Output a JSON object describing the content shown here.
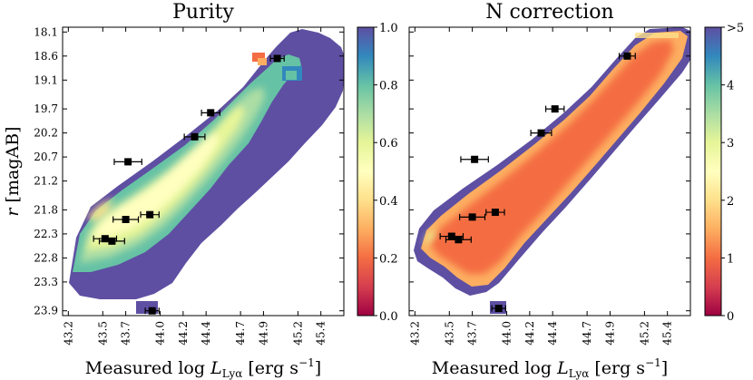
{
  "chart_data": [
    {
      "type": "heatmap",
      "title": "Purity",
      "xlabel": "Measured log L_Lyα [erg s^-1]",
      "xlabel_parts": {
        "main": "Measured log ",
        "L": "L",
        "sub": "Lyα",
        "unit": " [erg s",
        "exp": "−1",
        "close": "]"
      },
      "ylabel": "r [magAB]",
      "ylabel_parts": {
        "r": "r",
        "rest": " [magAB]"
      },
      "xlim": [
        43.15,
        45.6
      ],
      "ylim": [
        18.0,
        24.0
      ],
      "xticks": [
        "43.2",
        "43.5",
        "43.7",
        "44.0",
        "44.2",
        "44.4",
        "44.7",
        "44.9",
        "45.2",
        "45.4"
      ],
      "yticks": [
        "18.1",
        "18.6",
        "19.1",
        "19.7",
        "20.2",
        "20.7",
        "21.2",
        "21.8",
        "22.3",
        "22.8",
        "23.3",
        "23.9"
      ],
      "colorbar": {
        "min": 0.0,
        "max": 1.0,
        "ticks": [
          "0.0",
          "0.2",
          "0.4",
          "0.6",
          "0.8",
          "1.0"
        ]
      },
      "points": [
        {
          "x": 45.02,
          "y": 18.65,
          "xerr": 0.06
        },
        {
          "x": 44.44,
          "y": 19.78,
          "xerr": 0.08
        },
        {
          "x": 44.3,
          "y": 20.28,
          "xerr": 0.09
        },
        {
          "x": 43.72,
          "y": 20.8,
          "xerr": 0.12
        },
        {
          "x": 43.91,
          "y": 21.9,
          "xerr": 0.08
        },
        {
          "x": 43.7,
          "y": 22.0,
          "xerr": 0.11
        },
        {
          "x": 43.52,
          "y": 22.4,
          "xerr": 0.1
        },
        {
          "x": 43.58,
          "y": 22.45,
          "xerr": 0.11
        },
        {
          "x": 43.93,
          "y": 23.9,
          "xerr": 0.06
        }
      ]
    },
    {
      "type": "heatmap",
      "title": "N correction",
      "xlabel": "Measured log L_Lyα [erg s^-1]",
      "xlabel_parts": {
        "main": "Measured log ",
        "L": "L",
        "sub": "Lyα",
        "unit": " [erg s",
        "exp": "−1",
        "close": "]"
      },
      "xlim": [
        43.15,
        45.6
      ],
      "ylim": [
        18.0,
        24.0
      ],
      "xticks": [
        "43.2",
        "43.5",
        "43.7",
        "44.0",
        "44.2",
        "44.4",
        "44.7",
        "44.9",
        "45.2",
        "45.4"
      ],
      "colorbar": {
        "min": 0,
        "max": 5,
        "ticks": [
          "0",
          "1",
          "2",
          "3",
          "4",
          ">5"
        ]
      },
      "points": [
        {
          "x": 45.05,
          "y": 18.6,
          "xerr": 0.07
        },
        {
          "x": 44.42,
          "y": 19.7,
          "xerr": 0.08
        },
        {
          "x": 44.3,
          "y": 20.2,
          "xerr": 0.09
        },
        {
          "x": 43.72,
          "y": 20.75,
          "xerr": 0.12
        },
        {
          "x": 43.9,
          "y": 21.85,
          "xerr": 0.08
        },
        {
          "x": 43.7,
          "y": 21.95,
          "xerr": 0.11
        },
        {
          "x": 43.52,
          "y": 22.35,
          "xerr": 0.1
        },
        {
          "x": 43.58,
          "y": 22.42,
          "xerr": 0.11
        },
        {
          "x": 43.93,
          "y": 23.85,
          "xerr": 0.06
        }
      ]
    }
  ],
  "colors": {
    "mask": "#5e4fa2",
    "spectral": [
      "#9e0142",
      "#d53e4f",
      "#f46d43",
      "#fdae61",
      "#fee08b",
      "#ffffbf",
      "#e6f598",
      "#abdda4",
      "#66c2a5",
      "#3288bd",
      "#5e4fa2"
    ]
  }
}
